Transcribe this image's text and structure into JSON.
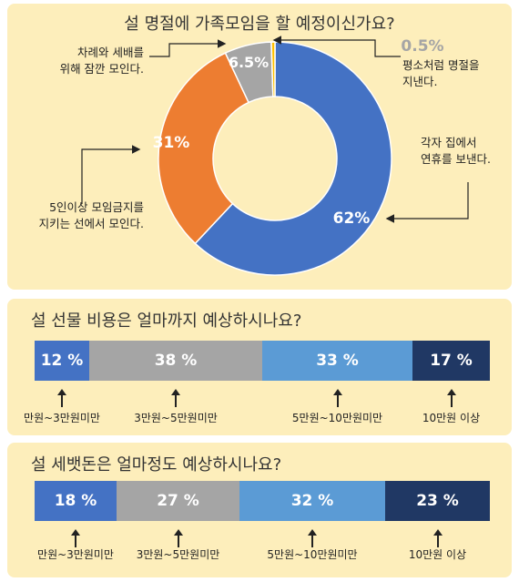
{
  "colors": {
    "blue": "#4472c4",
    "orange": "#ed7d31",
    "gray": "#a5a5a5",
    "gold": "#ffc000",
    "lightblue": "#5b9bd5",
    "navy": "#203864",
    "panel": "#fdeebb"
  },
  "chart_data": [
    {
      "type": "pie",
      "title": "설 명절에 가족모임을 할 예정이신가요?",
      "slices": [
        {
          "label": "각자 집에서\n연휴를 보낸다.",
          "value": 62,
          "display": "62%"
        },
        {
          "label": "5인이상 모임금지를\n지키는 선에서 모인다.",
          "value": 31,
          "display": "31%"
        },
        {
          "label": "차례와 세배를\n위해 잠깐 모인다.",
          "value": 6.5,
          "display": "6.5%"
        },
        {
          "label": "평소처럼 명절을\n지낸다.",
          "value": 0.5,
          "display": "0.5%"
        }
      ]
    },
    {
      "type": "bar",
      "title": "설 선물 비용은 얼마까지 예상하시나요?",
      "categories": [
        "만원~3만원미만",
        "3만원~5만원미만",
        "5만원~10만원미만",
        "10만원 이상"
      ],
      "values": [
        12,
        38,
        33,
        17
      ],
      "displays": [
        "12 %",
        "38 %",
        "33 %",
        "17 %"
      ]
    },
    {
      "type": "bar",
      "title": "설 세뱃돈은 얼마정도 예상하시나요?",
      "categories": [
        "만원~3만원미만",
        "3만원~5만원미만",
        "5만원~10만원미만",
        "10만원 이상"
      ],
      "values": [
        18,
        27,
        32,
        23
      ],
      "displays": [
        "18 %",
        "27 %",
        "32 %",
        "23 %"
      ]
    }
  ]
}
